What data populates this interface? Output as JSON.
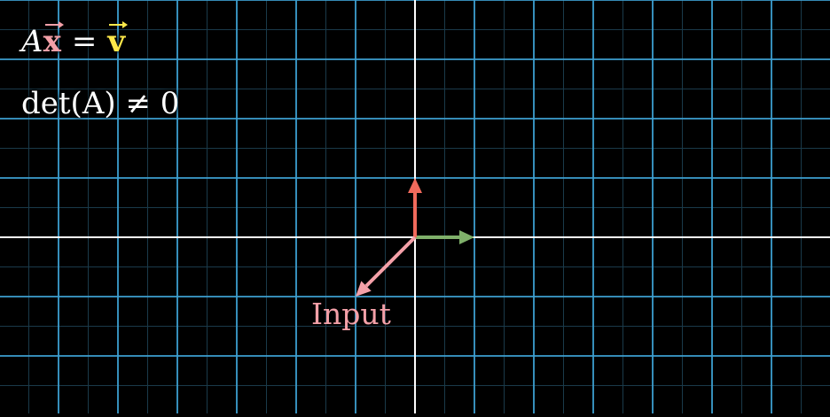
{
  "equations": {
    "line1": {
      "matrix": "A",
      "input_vector": "x",
      "equals": "=",
      "output_vector": "v"
    },
    "line2": {
      "text": "det(A) ≠ 0"
    }
  },
  "labels": {
    "input": "Input"
  },
  "colors": {
    "background": "#000000",
    "grid_major": "#3d9fd0",
    "grid_minor": "#1a3a4a",
    "axis": "#ffffff",
    "i_hat": "#7fb06a",
    "j_hat": "#f06a5c",
    "input_vector": "#f4a0a8",
    "input_label": "#f4a0a8",
    "output_vector_text": "#ffe94a"
  },
  "chart_data": {
    "type": "vector-diagram",
    "x_range": [
      -7,
      7
    ],
    "y_range": [
      -3,
      4
    ],
    "grid_step": 1,
    "vectors": [
      {
        "name": "i-hat",
        "x": 1,
        "y": 0
      },
      {
        "name": "j-hat",
        "x": 0,
        "y": 1
      },
      {
        "name": "input",
        "x": -1,
        "y": -1
      }
    ]
  }
}
